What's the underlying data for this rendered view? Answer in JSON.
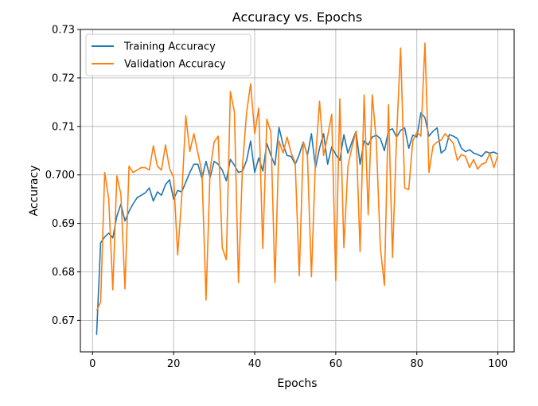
{
  "chart_data": {
    "type": "line",
    "title": "Accuracy vs. Epochs",
    "xlabel": "Epochs",
    "ylabel": "Accuracy",
    "xlim": [
      -3,
      104
    ],
    "ylim": [
      0.6635,
      0.73
    ],
    "xticks": [
      0,
      20,
      40,
      60,
      80,
      100
    ],
    "xtick_labels": [
      "0",
      "20",
      "40",
      "60",
      "80",
      "100"
    ],
    "yticks": [
      0.67,
      0.68,
      0.69,
      0.7,
      0.71,
      0.72,
      0.73
    ],
    "ytick_labels": [
      "0.67",
      "0.68",
      "0.69",
      "0.700",
      "0.71",
      "0.72",
      "0.73"
    ],
    "grid": true,
    "legend_position": "top-left",
    "x": [
      1,
      2,
      3,
      4,
      5,
      6,
      7,
      8,
      9,
      10,
      11,
      12,
      13,
      14,
      15,
      16,
      17,
      18,
      19,
      20,
      21,
      22,
      23,
      24,
      25,
      26,
      27,
      28,
      29,
      30,
      31,
      32,
      33,
      34,
      35,
      36,
      37,
      38,
      39,
      40,
      41,
      42,
      43,
      44,
      45,
      46,
      47,
      48,
      49,
      50,
      51,
      52,
      53,
      54,
      55,
      56,
      57,
      58,
      59,
      60,
      61,
      62,
      63,
      64,
      65,
      66,
      67,
      68,
      69,
      70,
      71,
      72,
      73,
      74,
      75,
      76,
      77,
      78,
      79,
      80,
      81,
      82,
      83,
      84,
      85,
      86,
      87,
      88,
      89,
      90,
      91,
      92,
      93,
      94,
      95,
      96,
      97,
      98,
      99,
      100
    ],
    "series": [
      {
        "name": "Training Accuracy",
        "color": "#1f77b4",
        "values": [
          0.667,
          0.686,
          0.6872,
          0.688,
          0.687,
          0.6915,
          0.694,
          0.6905,
          0.6925,
          0.694,
          0.6953,
          0.6958,
          0.6963,
          0.6973,
          0.6946,
          0.6965,
          0.6958,
          0.698,
          0.699,
          0.695,
          0.6968,
          0.6965,
          0.6985,
          0.7005,
          0.7022,
          0.7022,
          0.6993,
          0.7028,
          0.6995,
          0.7028,
          0.7022,
          0.701,
          0.6988,
          0.7032,
          0.702,
          0.7005,
          0.7008,
          0.703,
          0.707,
          0.7005,
          0.7035,
          0.7008,
          0.7065,
          0.704,
          0.702,
          0.7098,
          0.7062,
          0.704,
          0.7038,
          0.7022,
          0.7042,
          0.7068,
          0.704,
          0.7085,
          0.7015,
          0.7055,
          0.7085,
          0.7022,
          0.7058,
          0.7042,
          0.703,
          0.7083,
          0.7045,
          0.7068,
          0.709,
          0.7022,
          0.707,
          0.7062,
          0.7078,
          0.7082,
          0.7075,
          0.705,
          0.7092,
          0.7095,
          0.7078,
          0.7092,
          0.7097,
          0.7055,
          0.7082,
          0.7078,
          0.7128,
          0.7118,
          0.708,
          0.709,
          0.7097,
          0.7045,
          0.7052,
          0.7083,
          0.708,
          0.7075,
          0.7055,
          0.7048,
          0.7052,
          0.7045,
          0.7042,
          0.7038,
          0.7048,
          0.7045,
          0.7047,
          0.7043
        ]
      },
      {
        "name": "Validation Accuracy",
        "color": "#ff7f0e",
        "values": [
          0.672,
          0.6738,
          0.7005,
          0.695,
          0.6763,
          0.6998,
          0.696,
          0.6765,
          0.7018,
          0.7005,
          0.701,
          0.7015,
          0.7015,
          0.701,
          0.706,
          0.7018,
          0.701,
          0.7062,
          0.7013,
          0.6995,
          0.6835,
          0.6955,
          0.7122,
          0.7048,
          0.7085,
          0.7045,
          0.7005,
          0.6742,
          0.701,
          0.7068,
          0.708,
          0.685,
          0.6825,
          0.7172,
          0.713,
          0.6778,
          0.702,
          0.7128,
          0.7188,
          0.7085,
          0.7138,
          0.6848,
          0.7115,
          0.7088,
          0.6778,
          0.707,
          0.7045,
          0.7078,
          0.7045,
          0.7025,
          0.6792,
          0.7068,
          0.7042,
          0.679,
          0.7032,
          0.7152,
          0.704,
          0.708,
          0.7125,
          0.6782,
          0.7157,
          0.685,
          0.7018,
          0.7057,
          0.709,
          0.6842,
          0.7165,
          0.6918,
          0.7165,
          0.707,
          0.685,
          0.6772,
          0.7145,
          0.683,
          0.7078,
          0.7262,
          0.6973,
          0.697,
          0.707,
          0.7088,
          0.708,
          0.7272,
          0.7005,
          0.706,
          0.7068,
          0.7072,
          0.7085,
          0.7075,
          0.7065,
          0.703,
          0.7042,
          0.7038,
          0.7015,
          0.7032,
          0.7012,
          0.7022,
          0.7025,
          0.7045,
          0.7015,
          0.704
        ]
      }
    ]
  }
}
